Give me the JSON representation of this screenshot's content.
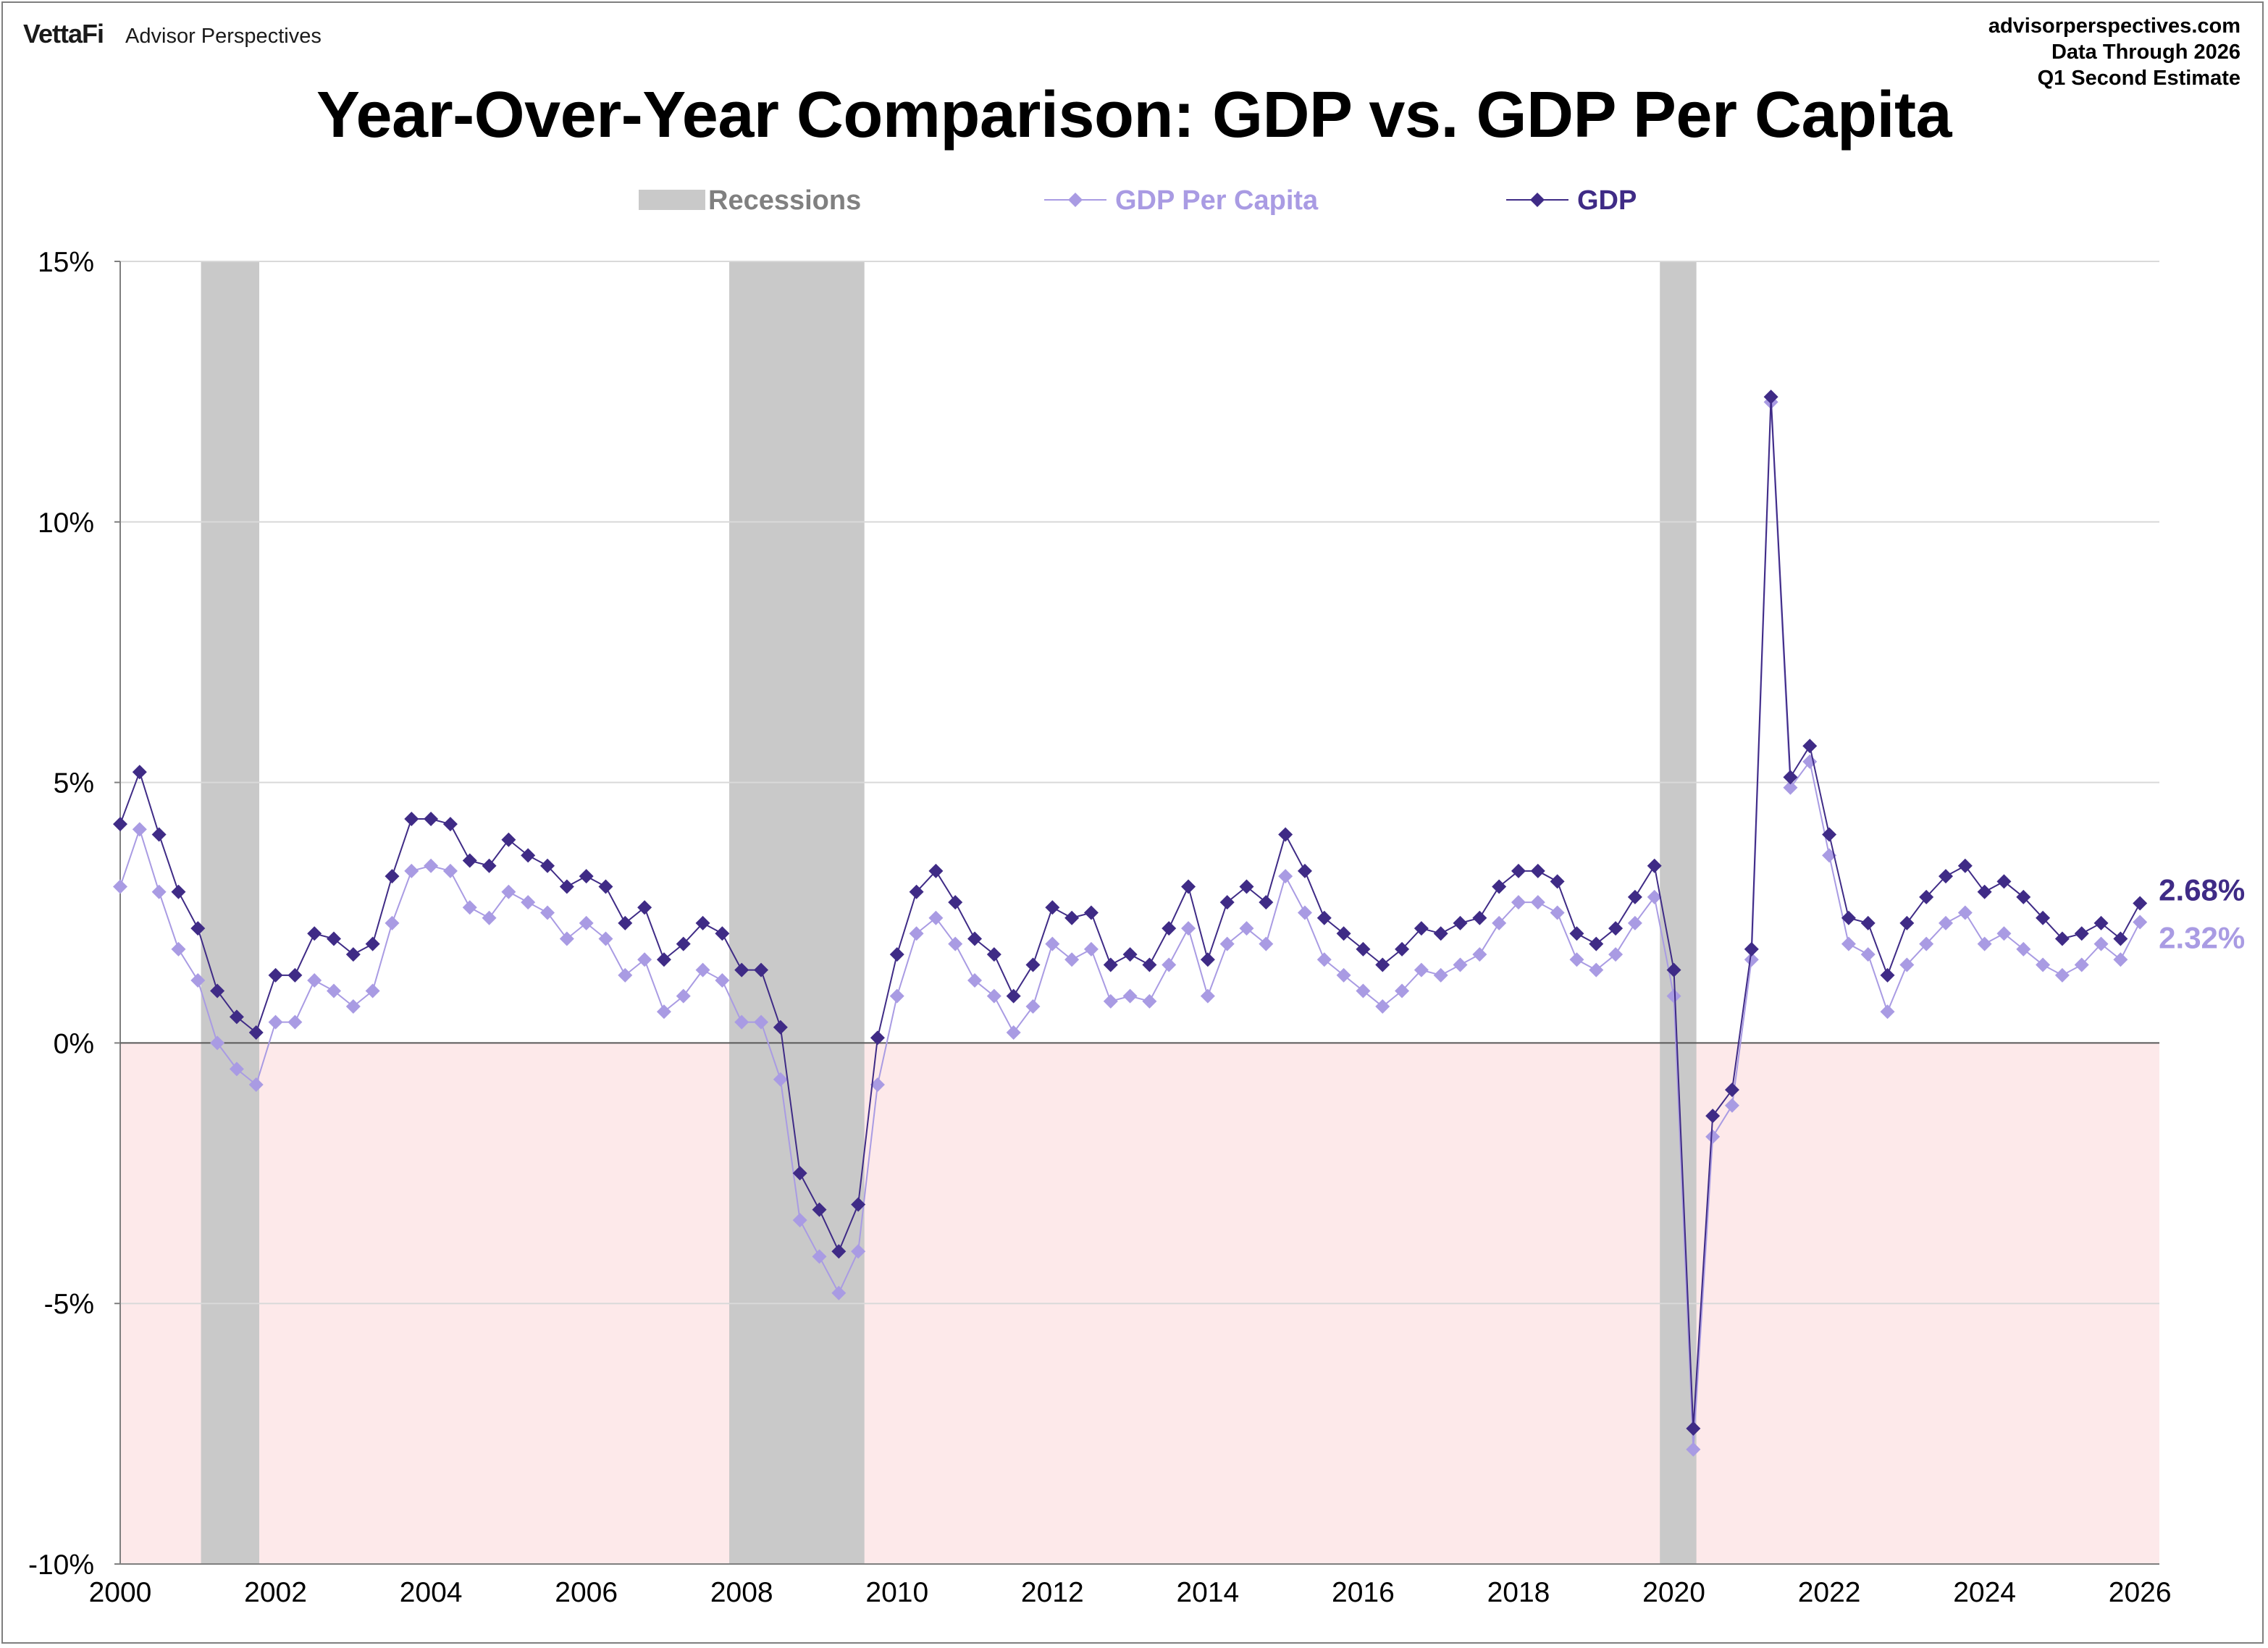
{
  "header": {
    "brand_logo": "VettaFi",
    "brand_name": "Advisor Perspectives",
    "source_lines": [
      "advisorperspectives.com",
      "Data Through 2026",
      "Q1 Second Estimate"
    ],
    "title": "Year-Over-Year Comparison: GDP vs. GDP Per Capita"
  },
  "colors": {
    "gdp": "#3f2b86",
    "gdp_per_capita": "#a99be3",
    "recession": "#c9c9c9",
    "negative_zone": "#fde9ea",
    "grid": "#d9d9d9",
    "zero_line": "#595959"
  },
  "chart_data": {
    "type": "line",
    "title": "Year-Over-Year Comparison: GDP vs. GDP Per Capita",
    "xlabel": "",
    "ylabel": "",
    "xlim": [
      2000,
      2026.25
    ],
    "ylim": [
      -10,
      15
    ],
    "y_ticks": [
      "-10%",
      "-5%",
      "0%",
      "5%",
      "10%",
      "15%"
    ],
    "y_tick_values": [
      -10,
      -5,
      0,
      5,
      10,
      15
    ],
    "x_ticks": [
      "2000",
      "2002",
      "2004",
      "2006",
      "2008",
      "2010",
      "2012",
      "2014",
      "2016",
      "2018",
      "2020",
      "2022",
      "2024",
      "2026"
    ],
    "x_tick_values": [
      2000,
      2002,
      2004,
      2006,
      2008,
      2010,
      2012,
      2014,
      2016,
      2018,
      2020,
      2022,
      2024,
      2026
    ],
    "grid": "horizontal",
    "legend": {
      "position": "top-center",
      "entries": [
        "Recessions",
        "GDP Per Capita",
        "GDP"
      ]
    },
    "recessions": [
      {
        "start": 2001.04,
        "end": 2001.79
      },
      {
        "start": 2007.84,
        "end": 2009.58
      },
      {
        "start": 2019.82,
        "end": 2020.29
      }
    ],
    "x_start": 2000.0,
    "x_step": 0.25,
    "series": [
      {
        "name": "GDP",
        "end_label": "2.68%",
        "values": [
          4.2,
          5.2,
          4.0,
          2.9,
          2.2,
          1.0,
          0.5,
          0.2,
          1.3,
          1.3,
          2.1,
          2.0,
          1.7,
          1.9,
          3.2,
          4.3,
          4.3,
          4.2,
          3.5,
          3.4,
          3.9,
          3.6,
          3.4,
          3.0,
          3.2,
          3.0,
          2.3,
          2.6,
          1.6,
          1.9,
          2.3,
          2.1,
          1.4,
          1.4,
          0.3,
          -2.5,
          -3.2,
          -4.0,
          -3.1,
          0.1,
          1.7,
          2.9,
          3.3,
          2.7,
          2.0,
          1.7,
          0.9,
          1.5,
          2.6,
          2.4,
          2.5,
          1.5,
          1.7,
          1.5,
          2.2,
          3.0,
          1.6,
          2.7,
          3.0,
          2.7,
          4.0,
          3.3,
          2.4,
          2.1,
          1.8,
          1.5,
          1.8,
          2.2,
          2.1,
          2.3,
          2.4,
          3.0,
          3.3,
          3.3,
          3.1,
          2.1,
          1.9,
          2.2,
          2.8,
          3.4,
          1.4,
          -7.4,
          -1.4,
          -0.9,
          1.8,
          12.4,
          5.1,
          5.7,
          4.0,
          2.4,
          2.3,
          1.3,
          2.3,
          2.8,
          3.2,
          3.4,
          2.9,
          3.1,
          2.8,
          2.4,
          2.0,
          2.1,
          2.3,
          2.0,
          2.68
        ]
      },
      {
        "name": "GDP Per Capita",
        "end_label": "2.32%",
        "values": [
          3.0,
          4.1,
          2.9,
          1.8,
          1.2,
          0.0,
          -0.5,
          -0.8,
          0.4,
          0.4,
          1.2,
          1.0,
          0.7,
          1.0,
          2.3,
          3.3,
          3.4,
          3.3,
          2.6,
          2.4,
          2.9,
          2.7,
          2.5,
          2.0,
          2.3,
          2.0,
          1.3,
          1.6,
          0.6,
          0.9,
          1.4,
          1.2,
          0.4,
          0.4,
          -0.7,
          -3.4,
          -4.1,
          -4.8,
          -4.0,
          -0.8,
          0.9,
          2.1,
          2.4,
          1.9,
          1.2,
          0.9,
          0.2,
          0.7,
          1.9,
          1.6,
          1.8,
          0.8,
          0.9,
          0.8,
          1.5,
          2.2,
          0.9,
          1.9,
          2.2,
          1.9,
          3.2,
          2.5,
          1.6,
          1.3,
          1.0,
          0.7,
          1.0,
          1.4,
          1.3,
          1.5,
          1.7,
          2.3,
          2.7,
          2.7,
          2.5,
          1.6,
          1.4,
          1.7,
          2.3,
          2.8,
          0.9,
          -7.8,
          -1.8,
          -1.2,
          1.6,
          12.3,
          4.9,
          5.4,
          3.6,
          1.9,
          1.7,
          0.6,
          1.5,
          1.9,
          2.3,
          2.5,
          1.9,
          2.1,
          1.8,
          1.5,
          1.3,
          1.5,
          1.9,
          1.6,
          2.32
        ]
      }
    ]
  }
}
